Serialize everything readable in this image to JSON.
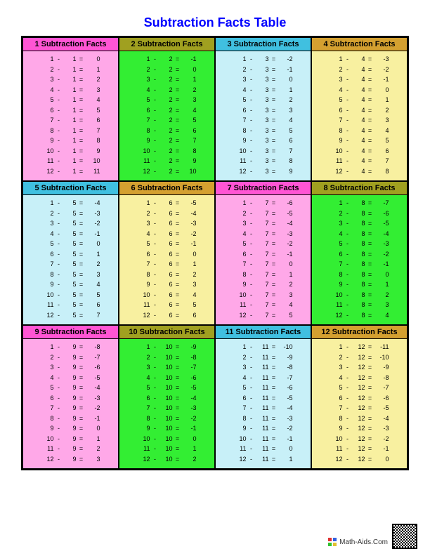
{
  "title": "Subtraction Facts Table",
  "footer_text": "Math-Aids.Com",
  "colors": {
    "title": "#0000ff",
    "outer_border": "#000000",
    "header_palette": [
      "#ff55d4",
      "#a0a020",
      "#40c0e0",
      "#d4a030"
    ],
    "body_palette": [
      "#ffa8e8",
      "#33ee33",
      "#c8f0f8",
      "#f8f0a0"
    ]
  },
  "typography": {
    "title_fontsize": 18,
    "header_fontsize": 11,
    "cell_fontsize": 9,
    "font_family": "Arial"
  },
  "layout": {
    "columns": 4,
    "rows": 3,
    "rows_per_panel": 12,
    "minuend_start": 1,
    "minuend_end": 12
  },
  "panels": [
    {
      "n": 1,
      "header_label": "1 Subtraction Facts",
      "header_color": "#ff55d4",
      "body_color": "#ffa8e8"
    },
    {
      "n": 2,
      "header_label": "2 Subtraction Facts",
      "header_color": "#a0a020",
      "body_color": "#33ee33"
    },
    {
      "n": 3,
      "header_label": "3 Subtraction Facts",
      "header_color": "#40c0e0",
      "body_color": "#c8f0f8"
    },
    {
      "n": 4,
      "header_label": "4 Subtraction Facts",
      "header_color": "#d4a030",
      "body_color": "#f8f0a0"
    },
    {
      "n": 5,
      "header_label": "5 Subtraction Facts",
      "header_color": "#40c0e0",
      "body_color": "#c8f0f8"
    },
    {
      "n": 6,
      "header_label": "6 Subtraction Facts",
      "header_color": "#d4a030",
      "body_color": "#f8f0a0"
    },
    {
      "n": 7,
      "header_label": "7 Subtraction Facts",
      "header_color": "#ff55d4",
      "body_color": "#ffa8e8"
    },
    {
      "n": 8,
      "header_label": "8 Subtraction Facts",
      "header_color": "#a0a020",
      "body_color": "#33ee33"
    },
    {
      "n": 9,
      "header_label": "9 Subtraction Facts",
      "header_color": "#ff55d4",
      "body_color": "#ffa8e8"
    },
    {
      "n": 10,
      "header_label": "10 Subtraction Facts",
      "header_color": "#a0a020",
      "body_color": "#33ee33"
    },
    {
      "n": 11,
      "header_label": "11 Subtraction Facts",
      "header_color": "#40c0e0",
      "body_color": "#c8f0f8"
    },
    {
      "n": 12,
      "header_label": "12 Subtraction Facts",
      "header_color": "#d4a030",
      "body_color": "#f8f0a0"
    }
  ],
  "operators": {
    "minus": "-",
    "equals": "="
  }
}
